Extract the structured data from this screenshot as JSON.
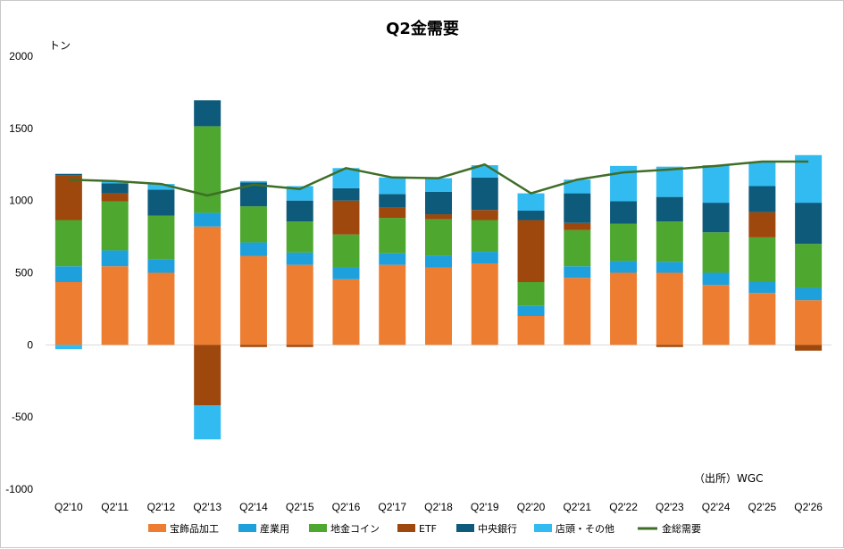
{
  "chart_data": {
    "type": "bar",
    "stacked": true,
    "title": "Q2金需要",
    "ylabel": "トン",
    "source_note": "（出所）WGC",
    "ylim": [
      -1000,
      2000
    ],
    "yticks": [
      -1000,
      -500,
      0,
      500,
      1000,
      1500,
      2000
    ],
    "grid": "none",
    "legend_position": "bottom",
    "categories": [
      "Q2'10",
      "Q2'11",
      "Q2'12",
      "Q2'13",
      "Q2'14",
      "Q2'15",
      "Q2'16",
      "Q2'17",
      "Q2'18",
      "Q2'19",
      "Q2'20",
      "Q2'21",
      "Q2'22",
      "Q2'23",
      "Q2'24",
      "Q2'25",
      "Q2'26"
    ],
    "series": [
      {
        "name": "宝飾品加工",
        "color": "#ED7D31",
        "values": [
          435,
          545,
          500,
          820,
          615,
          555,
          455,
          555,
          535,
          565,
          200,
          465,
          500,
          500,
          415,
          360,
          310
        ]
      },
      {
        "name": "産業用",
        "color": "#1EA0DC",
        "values": [
          110,
          110,
          95,
          95,
          95,
          85,
          85,
          80,
          85,
          80,
          70,
          80,
          80,
          75,
          85,
          75,
          85
        ]
      },
      {
        "name": "地金コイン",
        "color": "#4EA72E",
        "values": [
          320,
          340,
          300,
          600,
          250,
          215,
          225,
          245,
          250,
          220,
          165,
          250,
          260,
          280,
          280,
          310,
          305
        ]
      },
      {
        "name": "ETF",
        "color": "#9E480E",
        "values": [
          310,
          55,
          0,
          -420,
          -15,
          -15,
          235,
          70,
          35,
          70,
          430,
          50,
          0,
          -15,
          0,
          175,
          -40
        ]
      },
      {
        "name": "中央銀行",
        "color": "#0E5A7A",
        "values": [
          10,
          70,
          180,
          180,
          165,
          145,
          85,
          95,
          155,
          225,
          65,
          205,
          155,
          170,
          205,
          180,
          285
        ]
      },
      {
        "name": "店頭・その他",
        "color": "#32BBF0",
        "values": [
          -30,
          15,
          40,
          -235,
          10,
          100,
          140,
          115,
          95,
          85,
          120,
          95,
          245,
          210,
          260,
          165,
          330
        ]
      }
    ],
    "line_series": {
      "name": "金総需要",
      "color": "#3F6E27",
      "values": [
        1145,
        1135,
        1115,
        1035,
        1110,
        1080,
        1225,
        1160,
        1155,
        1250,
        1050,
        1145,
        1195,
        1215,
        1240,
        1270,
        1270
      ]
    }
  }
}
